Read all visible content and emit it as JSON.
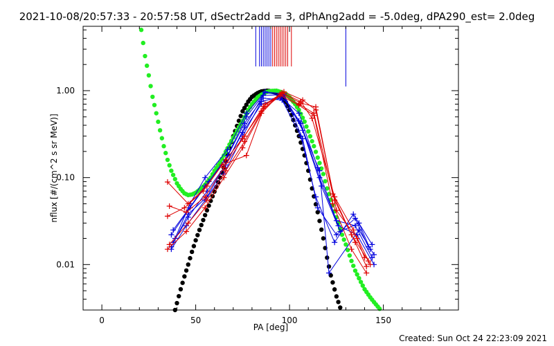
{
  "chart_data": {
    "type": "line",
    "title": "2021-10-08/20:57:33 - 20:57:58 UT, dSectr2add = 3, dPhAng2add = -5.0deg, dPA290_est=  2.0deg",
    "xlabel": "PA [deg]",
    "ylabel": "nflux [#/(cm^2 s sr MeV)]",
    "footer": "Created: Sun Oct 24 22:23:09 2021",
    "xlim": [
      -10,
      190
    ],
    "ylim": [
      0.003,
      5.5
    ],
    "yscale": "log",
    "xticks": [
      0,
      50,
      100,
      150
    ],
    "xtick_labels": [
      "0",
      "50",
      "100",
      "150"
    ],
    "yticks": [
      0.01,
      0.1,
      1.0
    ],
    "ytick_labels": [
      "0.01",
      "0.10",
      "1.00"
    ],
    "grid": false,
    "colors": {
      "red": "#dd0000",
      "blue": "#0000dd",
      "green": "#22ee22",
      "black": "#000000"
    },
    "vertical_markers": {
      "blue": [
        82,
        84,
        85,
        86,
        87,
        88,
        89,
        90,
        130
      ],
      "red": [
        91,
        92,
        93,
        94,
        95,
        96,
        97,
        98,
        99,
        101
      ]
    },
    "fit_curves": {
      "black_dotted": {
        "x": [
          38,
          40,
          42,
          44,
          46,
          48,
          50,
          52,
          55,
          58,
          60,
          63,
          65,
          68,
          70,
          73,
          75,
          78,
          80,
          83,
          85,
          88,
          90,
          92,
          95,
          98,
          100,
          102,
          105,
          108,
          110,
          112,
          115,
          118,
          120,
          122,
          125,
          127,
          129
        ],
        "y": [
          0.0025,
          0.0036,
          0.0052,
          0.0073,
          0.01,
          0.014,
          0.019,
          0.025,
          0.037,
          0.054,
          0.069,
          0.1,
          0.13,
          0.22,
          0.3,
          0.45,
          0.58,
          0.75,
          0.85,
          0.94,
          0.98,
          1.0,
          0.99,
          0.96,
          0.88,
          0.74,
          0.6,
          0.46,
          0.3,
          0.18,
          0.12,
          0.075,
          0.04,
          0.02,
          0.012,
          0.0075,
          0.0043,
          0.0032,
          0.0025
        ]
      },
      "green_dotted": {
        "x": [
          21,
          23,
          25,
          27,
          29,
          31,
          33,
          35,
          37,
          40,
          42,
          44,
          46,
          48,
          50,
          53,
          55,
          58,
          60,
          63,
          65,
          68,
          70,
          73,
          75,
          78,
          80,
          83,
          85,
          88,
          90,
          93,
          95,
          98,
          100,
          103,
          105,
          108,
          110,
          113,
          115,
          118,
          120,
          123,
          125,
          128,
          130,
          133,
          135,
          138,
          140,
          143,
          145,
          148
        ],
        "y": [
          5.0,
          2.5,
          1.5,
          0.85,
          0.55,
          0.35,
          0.23,
          0.16,
          0.12,
          0.086,
          0.074,
          0.066,
          0.063,
          0.064,
          0.067,
          0.075,
          0.083,
          0.1,
          0.12,
          0.15,
          0.18,
          0.24,
          0.29,
          0.38,
          0.45,
          0.6,
          0.7,
          0.84,
          0.9,
          0.97,
          0.99,
          1.0,
          0.97,
          0.92,
          0.84,
          0.7,
          0.6,
          0.44,
          0.34,
          0.23,
          0.17,
          0.11,
          0.075,
          0.048,
          0.035,
          0.022,
          0.017,
          0.011,
          0.0085,
          0.0063,
          0.0052,
          0.0042,
          0.0037,
          0.0031
        ]
      }
    },
    "series_blue": [
      {
        "x": [
          37,
          45,
          55,
          65,
          75,
          85,
          95,
          105,
          115,
          125,
          135,
          144
        ],
        "y": [
          0.015,
          0.028,
          0.055,
          0.11,
          0.3,
          0.75,
          0.85,
          0.55,
          0.13,
          0.032,
          0.028,
          0.012
        ]
      },
      {
        "x": [
          38,
          46,
          56,
          66,
          76,
          86,
          96,
          106,
          116,
          126,
          136,
          145
        ],
        "y": [
          0.018,
          0.035,
          0.07,
          0.14,
          0.38,
          0.88,
          0.9,
          0.42,
          0.1,
          0.028,
          0.022,
          0.01
        ]
      },
      {
        "x": [
          37,
          47,
          57,
          67,
          77,
          87,
          97,
          107,
          117,
          127,
          137,
          143
        ],
        "y": [
          0.022,
          0.045,
          0.09,
          0.18,
          0.5,
          0.95,
          0.88,
          0.35,
          0.08,
          0.024,
          0.03,
          0.015
        ]
      },
      {
        "x": [
          38,
          45,
          55,
          66,
          76,
          86,
          96,
          106,
          114,
          124,
          134,
          144
        ],
        "y": [
          0.025,
          0.04,
          0.08,
          0.16,
          0.42,
          0.82,
          0.78,
          0.3,
          0.06,
          0.018,
          0.038,
          0.017
        ]
      },
      {
        "x": [
          37,
          46,
          56,
          65,
          75,
          85,
          95,
          105,
          116,
          121,
          137,
          145
        ],
        "y": [
          0.016,
          0.038,
          0.06,
          0.13,
          0.33,
          0.7,
          0.82,
          0.45,
          0.12,
          0.008,
          0.025,
          0.013
        ]
      },
      {
        "x": [
          39,
          47,
          55,
          67,
          77,
          87,
          97,
          107,
          115,
          125,
          135,
          142
        ],
        "y": [
          0.02,
          0.05,
          0.1,
          0.21,
          0.55,
          0.97,
          0.92,
          0.28,
          0.045,
          0.022,
          0.034,
          0.016
        ]
      }
    ],
    "series_red": [
      {
        "x": [
          35,
          45,
          55,
          65,
          75,
          85,
          95,
          105,
          113,
          123,
          133,
          142
        ],
        "y": [
          0.015,
          0.024,
          0.045,
          0.1,
          0.22,
          0.55,
          0.92,
          0.7,
          0.55,
          0.065,
          0.022,
          0.011
        ]
      },
      {
        "x": [
          36,
          46,
          56,
          66,
          76,
          86,
          96,
          106,
          112,
          124,
          134,
          143
        ],
        "y": [
          0.017,
          0.03,
          0.055,
          0.12,
          0.26,
          0.62,
          0.95,
          0.75,
          0.48,
          0.06,
          0.025,
          0.01
        ]
      },
      {
        "x": [
          35,
          44,
          54,
          64,
          77,
          87,
          97,
          107,
          114,
          124,
          135,
          141
        ],
        "y": [
          0.036,
          0.045,
          0.07,
          0.14,
          0.18,
          0.7,
          0.97,
          0.78,
          0.6,
          0.055,
          0.018,
          0.0095
        ]
      },
      {
        "x": [
          36,
          45,
          55,
          65,
          75,
          85,
          95,
          105,
          113,
          123,
          133,
          141
        ],
        "y": [
          0.047,
          0.04,
          0.06,
          0.13,
          0.28,
          0.58,
          0.88,
          0.68,
          0.52,
          0.05,
          0.015,
          0.008
        ]
      },
      {
        "x": [
          35,
          46,
          56,
          66,
          76,
          86,
          96,
          106,
          114,
          125,
          136,
          140
        ],
        "y": [
          0.089,
          0.05,
          0.08,
          0.16,
          0.3,
          0.66,
          0.93,
          0.72,
          0.65,
          0.042,
          0.02,
          0.012
        ]
      }
    ]
  }
}
